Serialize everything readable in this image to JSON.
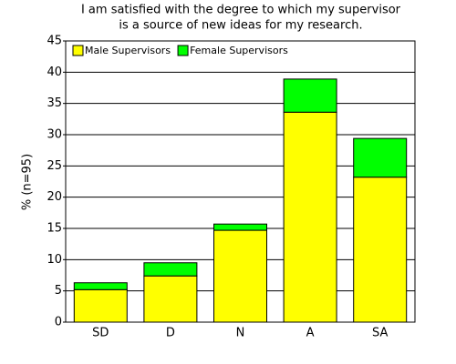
{
  "chart_data": {
    "type": "stacked_bar",
    "title": [
      "I am satisfied with the degree to which my supervisor",
      "is a source of new ideas for my research."
    ],
    "ylabel": "% (n=95)",
    "categories": [
      "SD",
      "D",
      "N",
      "A",
      "SA"
    ],
    "series": [
      {
        "name": "Male Supervisors",
        "color": "#ffff00",
        "values": [
          5.2,
          7.4,
          14.7,
          33.6,
          23.2
        ]
      },
      {
        "name": "Female Supervisors",
        "color": "#00ff00",
        "values": [
          1.1,
          2.1,
          1.0,
          5.3,
          6.2
        ]
      }
    ],
    "ylim": [
      0,
      45
    ],
    "yticks": [
      0,
      5,
      10,
      15,
      20,
      25,
      30,
      35,
      40,
      45
    ],
    "grid": true,
    "legend": "top-left"
  }
}
